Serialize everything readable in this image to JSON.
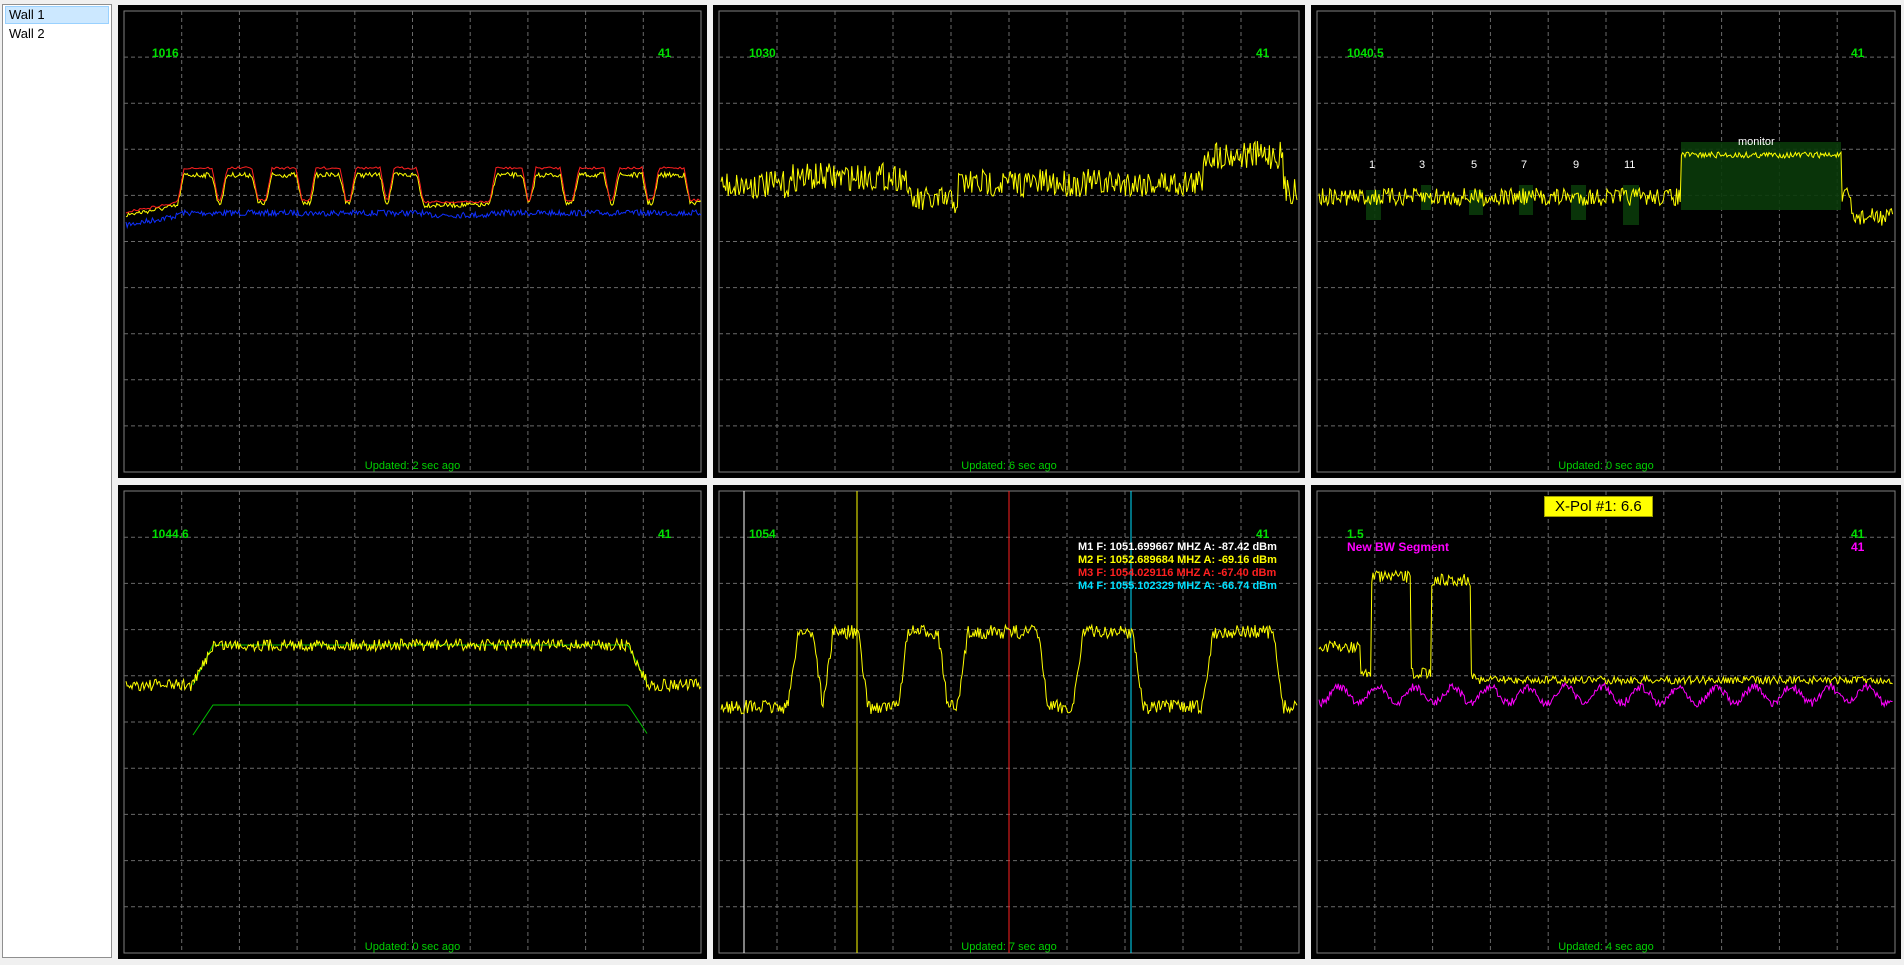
{
  "sidebar": {
    "items": [
      {
        "label": "Wall 1",
        "selected": true
      },
      {
        "label": "Wall 2",
        "selected": false
      }
    ]
  },
  "panels": [
    {
      "center": "1016",
      "right": "41",
      "updated": "Updated: 2 sec ago",
      "traces": [
        "red",
        "yellow",
        "blue"
      ]
    },
    {
      "center": "1030",
      "right": "41",
      "updated": "Updated: 6 sec ago",
      "traces": [
        "yellow"
      ]
    },
    {
      "center": "1040.5",
      "right": "41",
      "updated": "Updated: 0 sec ago",
      "traces": [
        "yellow"
      ],
      "channel_labels": [
        "1",
        "3",
        "5",
        "7",
        "9",
        "11"
      ],
      "monitor_label": "monitor"
    },
    {
      "center": "1044.6",
      "right": "41",
      "updated": "Updated: 0 sec ago",
      "traces": [
        "yellow",
        "green-mask"
      ]
    },
    {
      "center": "1054",
      "right": "41",
      "updated": "Updated: 7 sec ago",
      "traces": [
        "yellow"
      ],
      "markers": [
        {
          "text": "M1 F: 1051.699667 MHZ A: -87.42 dBm",
          "color": "#ffffff"
        },
        {
          "text": "M2 F: 1052.689684 MHZ A: -69.16 dBm",
          "color": "#ffff00"
        },
        {
          "text": "M3 F: 1054.029116 MHZ A: -67.40 dBm",
          "color": "#ff2020"
        },
        {
          "text": "M4 F: 1055.102329 MHZ A: -66.74 dBm",
          "color": "#00e0ff"
        }
      ]
    },
    {
      "center": "1.5",
      "right": "41",
      "updated": "Updated: 4 sec ago",
      "traces": [
        "yellow",
        "magenta"
      ],
      "xpol": "X-Pol #1: 6.6",
      "segment_label": "New BW Segment",
      "segment_right": "41"
    }
  ],
  "colors": {
    "grid": "#707070",
    "label_green": "#00e000",
    "yellow": "#ffff00",
    "red": "#ff2020",
    "blue": "#1030ff",
    "magenta": "#ff00ff",
    "cyan": "#00e0ff"
  }
}
